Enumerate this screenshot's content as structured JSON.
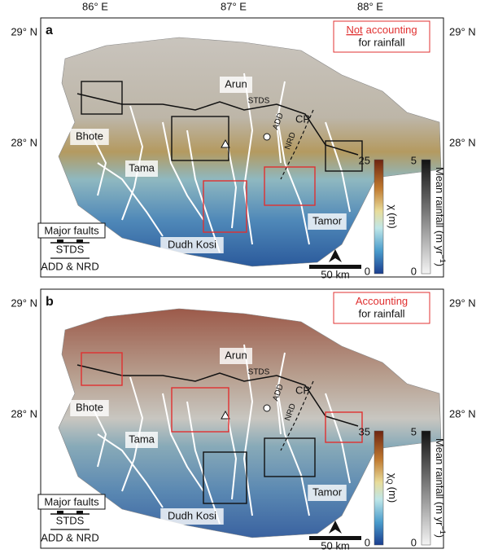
{
  "longitudes": [
    "86° E",
    "87° E",
    "88° E"
  ],
  "latitudes": [
    "29° N",
    "28° N"
  ],
  "places": [
    "Arun",
    "Bhote",
    "Tama",
    "Dudh Kosi",
    "Tamor"
  ],
  "faults": [
    "STDS",
    "ADD",
    "CP",
    "NRD"
  ],
  "legend": {
    "title": "Major faults",
    "items": [
      "STDS",
      "ADD & NRD"
    ]
  },
  "scale": "50 km",
  "rain_label": {
    "text": "Mean rainfall (m yr",
    "sup": "−1",
    "close": ")"
  },
  "panels": [
    {
      "label": "a",
      "note": {
        "underlined": "Not",
        "lines": [
          "accounting",
          "for rainfall"
        ]
      },
      "chi_label": {
        "symbol": "χ",
        "unit": "(m)"
      },
      "chi_range": [
        0,
        25
      ],
      "rain_range": [
        0,
        5
      ]
    },
    {
      "label": "b",
      "note": {
        "lines": [
          "Accounting",
          "for rainfall"
        ]
      },
      "chi_label": {
        "symbol": "χ",
        "subscript": "Q",
        "unit": "(m)"
      },
      "chi_range": [
        0,
        35
      ],
      "rain_range": [
        0,
        5
      ]
    }
  ]
}
